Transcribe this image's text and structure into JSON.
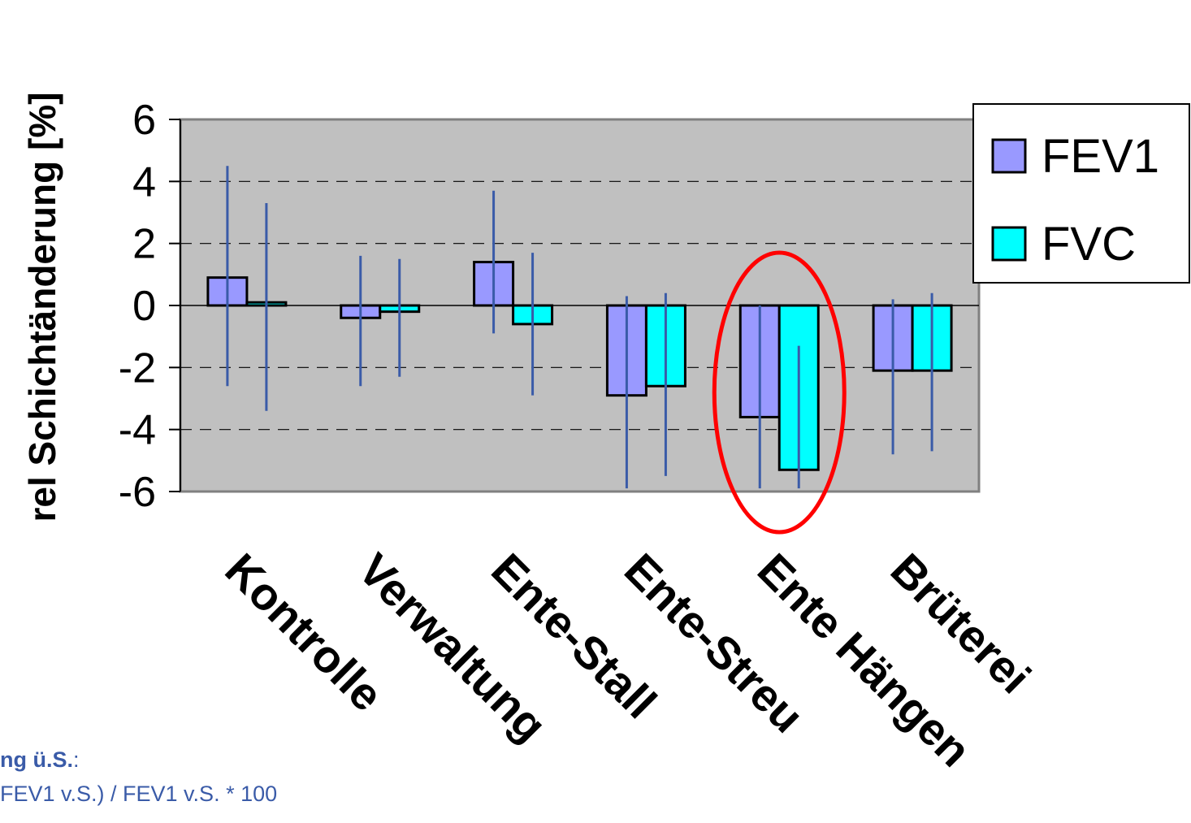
{
  "chart_data": {
    "type": "bar",
    "ylabel": "rel Schichtänderung [%]",
    "xlabel": "",
    "categories": [
      "Kontrolle",
      "Verwaltung",
      "Ente-Stall",
      "Ente-Streu",
      "Ente Hängen",
      "Brüterei"
    ],
    "series": [
      {
        "name": "FEV1",
        "color": "#9999ff",
        "values": [
          0.9,
          -0.4,
          1.4,
          -2.9,
          -3.6,
          -2.1
        ],
        "error_low": [
          -2.6,
          -2.6,
          -0.9,
          -5.9,
          -5.9,
          -4.8
        ],
        "error_high": [
          4.5,
          1.6,
          3.7,
          0.3,
          0.0,
          0.2
        ]
      },
      {
        "name": "FVC",
        "color": "#00ffff",
        "values": [
          0.1,
          -0.2,
          -0.6,
          -2.6,
          -5.3,
          -2.1
        ],
        "error_low": [
          -3.4,
          -2.3,
          -2.9,
          -5.5,
          -5.9,
          -4.7
        ],
        "error_high": [
          3.3,
          1.5,
          1.7,
          0.4,
          -1.3,
          0.4
        ]
      }
    ],
    "ylim": [
      -6,
      6
    ],
    "yticks": [
      "6",
      "4",
      "2",
      "0",
      "-2",
      "-4",
      "-6"
    ],
    "grid": true,
    "legend_position": "top-right",
    "plot_background": "#c0c0c0",
    "error_bar_color": "#3a5ba8",
    "highlight": {
      "category": "Ente Hängen",
      "shape": "ellipse",
      "color": "#ff0000"
    }
  },
  "footnote": {
    "title": "ng ü.S.",
    "title_suffix": ":",
    "formula": "FEV1 v.S.) / FEV1 v.S. * 100"
  }
}
